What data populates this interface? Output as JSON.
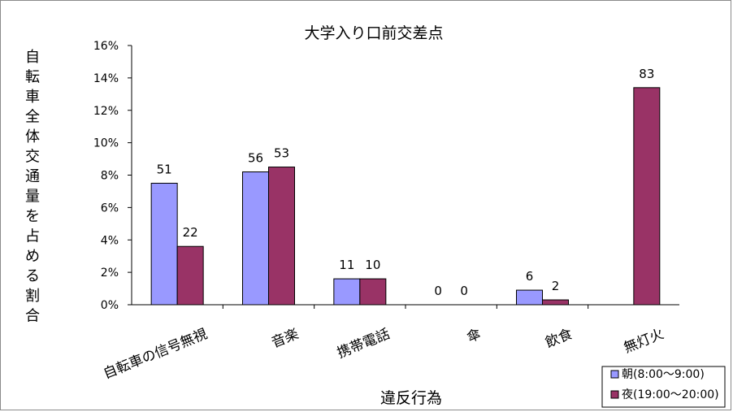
{
  "chart_data": {
    "type": "bar",
    "title": "大学入り口前交差点",
    "xlabel": "違反行為",
    "ylabel": "自転車全体交通量を占める割合",
    "ylim": [
      0,
      16
    ],
    "y_ticks": [
      "0%",
      "2%",
      "4%",
      "6%",
      "8%",
      "10%",
      "12%",
      "14%",
      "16%"
    ],
    "categories": [
      "自転車の信号無視",
      "音楽",
      "携帯電話",
      "傘",
      "飲食",
      "無灯火"
    ],
    "series": [
      {
        "name": "朝(8:00～9:00)",
        "color": "#9999ff",
        "values": [
          7.5,
          8.2,
          1.6,
          0,
          0.9,
          0
        ],
        "labels": [
          "51",
          "56",
          "11",
          "0",
          "6",
          ""
        ]
      },
      {
        "name": "夜(19:00～20:00)",
        "color": "#993366",
        "values": [
          3.6,
          8.5,
          1.6,
          0,
          0.3,
          13.4
        ],
        "labels": [
          "22",
          "53",
          "10",
          "0",
          "2",
          "83"
        ]
      }
    ],
    "legend_position": "bottom-right",
    "grid": false
  }
}
